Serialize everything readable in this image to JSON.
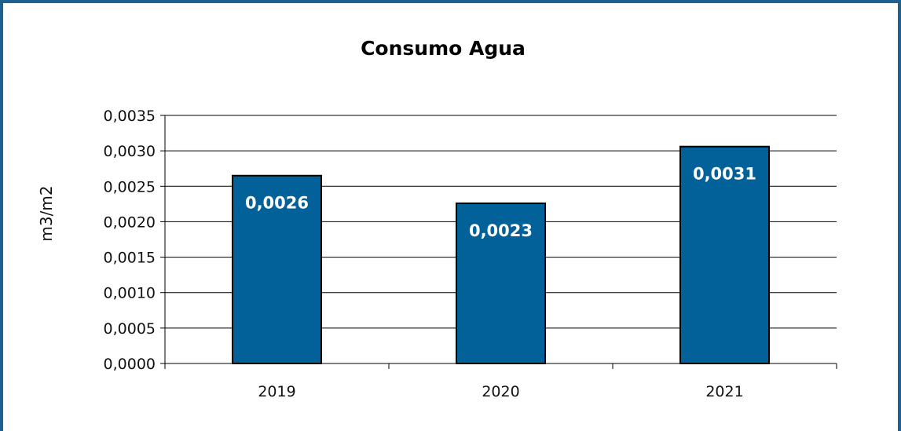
{
  "chart_data": {
    "type": "bar",
    "title": "Consumo Agua",
    "xlabel": "",
    "ylabel": "m3/m2",
    "categories": [
      "2019",
      "2020",
      "2021"
    ],
    "values": [
      0.00265,
      0.00226,
      0.00306
    ],
    "data_labels": [
      "0,0026",
      "0,0023",
      "0,0031"
    ],
    "yticks": [
      "0,0000",
      "0,0005",
      "0,0010",
      "0,0015",
      "0,0020",
      "0,0025",
      "0,0030",
      "0,0035"
    ],
    "ylim": [
      0,
      0.0035
    ],
    "grid": true,
    "legend": "none",
    "colors": {
      "bar": "#036199",
      "bar_edge": "#000000",
      "frame": "#1d6190",
      "grid": "#000000"
    }
  }
}
